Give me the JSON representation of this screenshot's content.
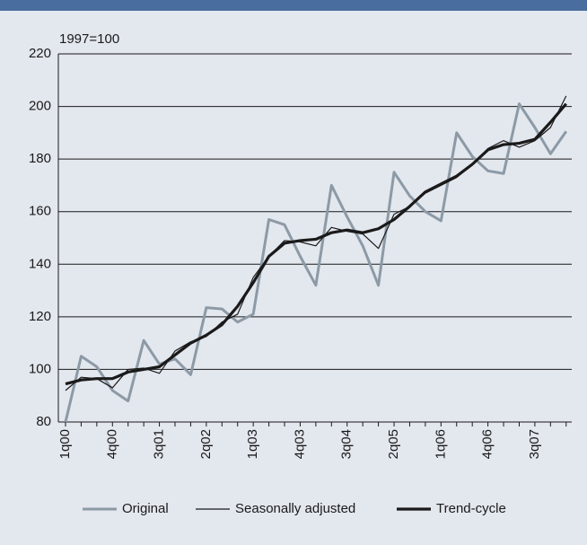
{
  "chart_data": {
    "type": "line",
    "subtitle": "1997=100",
    "categories": [
      "1q00",
      null,
      null,
      "4q00",
      null,
      null,
      "3q01",
      null,
      null,
      "2q02",
      null,
      null,
      "1q03",
      null,
      null,
      "4q03",
      null,
      null,
      "3q04",
      null,
      null,
      "2q05",
      null,
      null,
      "1q06",
      null,
      null,
      "4q06",
      null,
      null,
      "3q07",
      null,
      null
    ],
    "series": [
      {
        "name": "Original",
        "color": "#8c9aa6",
        "width": 3,
        "values": [
          80,
          105,
          101,
          92,
          88,
          111,
          102,
          104,
          98,
          123.5,
          123,
          118,
          121,
          157,
          155,
          143,
          132,
          170,
          158,
          147,
          132,
          175,
          166,
          160,
          156.5,
          190,
          181,
          175.5,
          174.5,
          201,
          192,
          182,
          190.5
        ]
      },
      {
        "name": "Seasonally adjusted",
        "color": "#1a1a1a",
        "width": 1.2,
        "values": [
          92,
          97,
          96.5,
          93,
          100,
          100.5,
          98.5,
          107,
          110.5,
          112.5,
          118,
          121,
          135,
          143,
          149,
          148.5,
          147,
          154,
          152.5,
          151.5,
          146,
          159,
          162,
          167,
          170,
          173,
          178,
          184,
          187,
          184.5,
          187,
          192,
          204
        ]
      },
      {
        "name": "Trend-cycle",
        "color": "#1a1a1a",
        "width": 3.2,
        "values": [
          94.5,
          96,
          96.5,
          96.5,
          99,
          100,
          101,
          105.5,
          110,
          113,
          117,
          124,
          133,
          143,
          148,
          149,
          149.5,
          152,
          153,
          152,
          153.5,
          157,
          162,
          167.5,
          170.5,
          173.5,
          178,
          183.5,
          185.5,
          186,
          187.5,
          194,
          201
        ]
      }
    ],
    "ylim": [
      80,
      220
    ],
    "yticks": [
      80,
      100,
      120,
      140,
      160,
      180,
      200,
      220
    ],
    "grid": true
  }
}
